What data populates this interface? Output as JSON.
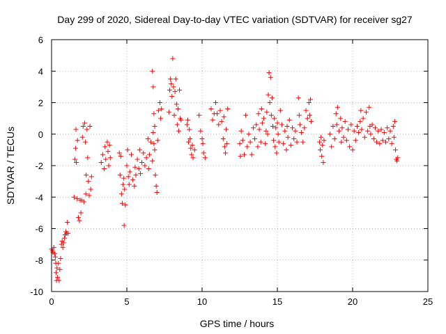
{
  "chart_data": {
    "type": "scatter",
    "title": "Day 299 of 2020, Sidereal Day-to-day VTEC variation (SDTVAR) for receiver sg27",
    "xlabel": "GPS time / hours",
    "ylabel": "SDTVAR / TECUs",
    "xlim": [
      0,
      25
    ],
    "ylim": [
      -10,
      6
    ],
    "xticks": [
      0,
      5,
      10,
      15,
      20,
      25
    ],
    "yticks": [
      -10,
      -8,
      -6,
      -4,
      -2,
      0,
      2,
      4,
      6
    ],
    "grid": true,
    "marker": "+",
    "marker_color": "#ff0000",
    "series": [
      {
        "name": "sg27",
        "points": [
          [
            0.0,
            -7.3
          ],
          [
            0.05,
            -7.4
          ],
          [
            0.1,
            -7.5
          ],
          [
            0.15,
            -7.2
          ],
          [
            0.2,
            -7.6
          ],
          [
            0.25,
            -7.8
          ],
          [
            0.28,
            -8.2
          ],
          [
            0.3,
            -8.8
          ],
          [
            0.33,
            -9.3
          ],
          [
            0.36,
            -8.5
          ],
          [
            0.4,
            -9.1
          ],
          [
            0.45,
            -8.2
          ],
          [
            0.5,
            -9.3
          ],
          [
            0.55,
            -8.6
          ],
          [
            0.6,
            -7.9
          ],
          [
            0.65,
            -7.0
          ],
          [
            0.7,
            -6.8
          ],
          [
            0.75,
            -7.2
          ],
          [
            0.8,
            -6.9
          ],
          [
            0.85,
            -6.6
          ],
          [
            0.9,
            -6.4
          ],
          [
            0.95,
            -6.2
          ],
          [
            1.0,
            -6.3
          ],
          [
            1.05,
            -5.6
          ],
          [
            1.1,
            -6.3
          ],
          [
            1.5,
            -4.0
          ],
          [
            1.55,
            -1.6
          ],
          [
            1.6,
            -0.9
          ],
          [
            1.62,
            0.3
          ],
          [
            1.65,
            -1.8
          ],
          [
            1.7,
            -4.1
          ],
          [
            1.72,
            -0.4
          ],
          [
            1.78,
            -5.3
          ],
          [
            1.85,
            -5.5
          ],
          [
            1.9,
            -4.2
          ],
          [
            1.95,
            -5.0
          ],
          [
            2.0,
            -4.2
          ],
          [
            2.05,
            -0.2
          ],
          [
            2.1,
            0.5
          ],
          [
            2.15,
            -4.3
          ],
          [
            2.2,
            0.7
          ],
          [
            2.25,
            -0.5
          ],
          [
            2.28,
            -3.8
          ],
          [
            2.3,
            -2.6
          ],
          [
            2.35,
            0.3
          ],
          [
            2.4,
            -1.5
          ],
          [
            2.45,
            -3.0
          ],
          [
            2.5,
            -3.9
          ],
          [
            2.55,
            0.5
          ],
          [
            2.6,
            -3.5
          ],
          [
            2.65,
            -2.7
          ],
          [
            3.3,
            -1.8
          ],
          [
            3.4,
            -1.3
          ],
          [
            3.5,
            -2.2
          ],
          [
            3.55,
            -0.8
          ],
          [
            3.6,
            -1.6
          ],
          [
            3.7,
            -0.5
          ],
          [
            3.75,
            -1.1
          ],
          [
            3.8,
            -2.0
          ],
          [
            3.85,
            -0.7
          ],
          [
            3.9,
            -1.5
          ],
          [
            4.5,
            -1.2
          ],
          [
            4.55,
            -2.6
          ],
          [
            4.6,
            -1.4
          ],
          [
            4.65,
            -3.8
          ],
          [
            4.7,
            -4.4
          ],
          [
            4.75,
            -3.2
          ],
          [
            4.8,
            -2.8
          ],
          [
            4.82,
            -5.8
          ],
          [
            4.85,
            -3.5
          ],
          [
            4.9,
            -4.5
          ],
          [
            5.0,
            -2.0
          ],
          [
            5.05,
            -1.0
          ],
          [
            5.1,
            -2.7
          ],
          [
            5.15,
            -3.2
          ],
          [
            5.2,
            -2.4
          ],
          [
            5.3,
            -1.3
          ],
          [
            5.4,
            -2.9
          ],
          [
            5.5,
            -3.3
          ],
          [
            5.55,
            -2.1
          ],
          [
            5.6,
            -2.6
          ],
          [
            5.7,
            -1.6
          ],
          [
            5.8,
            -2.2
          ],
          [
            5.85,
            -1.0
          ],
          [
            5.9,
            -2.5
          ],
          [
            6.0,
            -1.8
          ],
          [
            6.1,
            -1.2
          ],
          [
            6.2,
            -2.0
          ],
          [
            6.3,
            -1.5
          ],
          [
            6.4,
            -0.3
          ],
          [
            6.45,
            -2.2
          ],
          [
            6.5,
            -1.3
          ],
          [
            6.6,
            -0.5
          ],
          [
            6.7,
            -1.7
          ],
          [
            6.75,
            0.1
          ],
          [
            6.8,
            -0.6
          ],
          [
            6.85,
            -1.0
          ],
          [
            6.9,
            -2.6
          ],
          [
            6.95,
            -3.3
          ],
          [
            7.0,
            -3.7
          ],
          [
            7.05,
            -0.4
          ],
          [
            6.7,
            4.0
          ],
          [
            6.75,
            3.0
          ],
          [
            6.8,
            1.3
          ],
          [
            6.85,
            0.5
          ],
          [
            7.1,
            1.5
          ],
          [
            7.2,
            2.0
          ],
          [
            7.25,
            1.0
          ],
          [
            7.3,
            1.6
          ],
          [
            7.8,
            1.4
          ],
          [
            7.85,
            2.8
          ],
          [
            7.9,
            3.5
          ],
          [
            7.95,
            3.2
          ],
          [
            8.0,
            2.4
          ],
          [
            8.05,
            4.8
          ],
          [
            8.1,
            3.0
          ],
          [
            8.15,
            1.2
          ],
          [
            8.2,
            2.7
          ],
          [
            8.25,
            3.5
          ],
          [
            8.3,
            1.9
          ],
          [
            8.35,
            0.6
          ],
          [
            8.4,
            1.6
          ],
          [
            8.45,
            0.2
          ],
          [
            8.5,
            2.8
          ],
          [
            8.55,
            1.0
          ],
          [
            8.6,
            0.9
          ],
          [
            9.0,
            0.6
          ],
          [
            9.05,
            0.9
          ],
          [
            9.1,
            -0.5
          ],
          [
            9.15,
            0.3
          ],
          [
            9.2,
            -0.3
          ],
          [
            9.25,
            -0.9
          ],
          [
            9.3,
            -1.3
          ],
          [
            9.35,
            -0.7
          ],
          [
            9.4,
            -1.5
          ],
          [
            9.5,
            -1.0
          ],
          [
            9.8,
            1.2
          ],
          [
            9.9,
            0.2
          ],
          [
            10.0,
            -0.3
          ],
          [
            10.05,
            -0.6
          ],
          [
            10.1,
            -1.2
          ],
          [
            10.2,
            -1.5
          ],
          [
            10.6,
            1.6
          ],
          [
            10.7,
            0.9
          ],
          [
            10.8,
            1.3
          ],
          [
            10.9,
            2.0
          ],
          [
            11.0,
            1.3
          ],
          [
            11.1,
            0.6
          ],
          [
            11.2,
            1.5
          ],
          [
            11.3,
            0.8
          ],
          [
            11.4,
            -0.3
          ],
          [
            11.45,
            1.1
          ],
          [
            11.5,
            -0.8
          ],
          [
            11.55,
            -1.2
          ],
          [
            11.6,
            0.3
          ],
          [
            11.65,
            -0.6
          ],
          [
            11.7,
            1.6
          ],
          [
            12.5,
            -0.6
          ],
          [
            12.55,
            -1.4
          ],
          [
            12.6,
            0.2
          ],
          [
            12.7,
            -0.4
          ],
          [
            12.8,
            -1.3
          ],
          [
            12.9,
            1.2
          ],
          [
            13.0,
            -0.8
          ],
          [
            13.1,
            0.0
          ],
          [
            13.2,
            -0.5
          ],
          [
            13.3,
            -1.3
          ],
          [
            13.4,
            0.4
          ],
          [
            13.5,
            -0.3
          ],
          [
            13.6,
            0.6
          ],
          [
            13.7,
            -0.8
          ],
          [
            13.75,
            1.3
          ],
          [
            13.8,
            0.3
          ],
          [
            13.9,
            -0.5
          ],
          [
            13.95,
            1.6
          ],
          [
            14.0,
            0.7
          ],
          [
            14.1,
            1.0
          ],
          [
            14.2,
            -0.6
          ],
          [
            14.25,
            0.2
          ],
          [
            14.3,
            1.4
          ],
          [
            14.35,
            0.0
          ],
          [
            14.4,
            2.5
          ],
          [
            14.45,
            3.9
          ],
          [
            14.5,
            2.0
          ],
          [
            14.55,
            3.6
          ],
          [
            14.6,
            1.2
          ],
          [
            14.65,
            2.3
          ],
          [
            14.7,
            0.5
          ],
          [
            14.75,
            -0.4
          ],
          [
            14.8,
            1.0
          ],
          [
            14.85,
            -0.8
          ],
          [
            14.9,
            0.4
          ],
          [
            14.95,
            -1.2
          ],
          [
            15.0,
            0.7
          ],
          [
            15.05,
            0.0
          ],
          [
            15.1,
            -0.5
          ],
          [
            15.2,
            1.5
          ],
          [
            15.3,
            0.6
          ],
          [
            15.4,
            -0.6
          ],
          [
            15.5,
            0.2
          ],
          [
            15.6,
            -1.0
          ],
          [
            15.65,
            0.5
          ],
          [
            15.7,
            -0.2
          ],
          [
            15.8,
            0.9
          ],
          [
            15.9,
            -0.7
          ],
          [
            16.0,
            0.4
          ],
          [
            16.1,
            -0.3
          ],
          [
            16.2,
            0.2
          ],
          [
            16.3,
            -0.5
          ],
          [
            16.4,
            2.3
          ],
          [
            16.45,
            1.2
          ],
          [
            16.5,
            0.6
          ],
          [
            16.6,
            0.1
          ],
          [
            16.7,
            -0.5
          ],
          [
            16.8,
            0.4
          ],
          [
            16.9,
            1.5
          ],
          [
            17.0,
            1.0
          ],
          [
            17.1,
            2.0
          ],
          [
            17.15,
            1.2
          ],
          [
            17.2,
            2.2
          ],
          [
            17.25,
            0.8
          ],
          [
            17.8,
            -0.5
          ],
          [
            17.85,
            -1.0
          ],
          [
            17.9,
            -0.2
          ],
          [
            17.95,
            -1.4
          ],
          [
            18.0,
            -0.7
          ],
          [
            18.05,
            -1.8
          ],
          [
            18.1,
            -0.4
          ],
          [
            18.5,
            0.0
          ],
          [
            18.6,
            -0.8
          ],
          [
            18.7,
            0.5
          ],
          [
            18.8,
            -0.3
          ],
          [
            18.9,
            1.3
          ],
          [
            18.95,
            0.6
          ],
          [
            19.0,
            1.7
          ],
          [
            19.1,
            0.2
          ],
          [
            19.2,
            1.0
          ],
          [
            19.25,
            -0.5
          ],
          [
            19.3,
            0.4
          ],
          [
            19.4,
            -0.2
          ],
          [
            19.5,
            0.8
          ],
          [
            19.6,
            -0.4
          ],
          [
            19.7,
            0.3
          ],
          [
            19.8,
            -0.8
          ],
          [
            19.9,
            0.6
          ],
          [
            20.0,
            -1.0
          ],
          [
            20.1,
            0.2
          ],
          [
            20.2,
            -0.4
          ],
          [
            20.3,
            0.5
          ],
          [
            20.4,
            0.1
          ],
          [
            20.5,
            0.8
          ],
          [
            20.55,
            1.5
          ],
          [
            20.6,
            0.3
          ],
          [
            20.7,
            1.0
          ],
          [
            20.8,
            -0.2
          ],
          [
            20.9,
            1.4
          ],
          [
            21.0,
            0.2
          ],
          [
            21.1,
            1.7
          ],
          [
            21.15,
            0.5
          ],
          [
            21.2,
            0.0
          ],
          [
            21.3,
            0.6
          ],
          [
            21.4,
            -0.3
          ],
          [
            21.5,
            0.4
          ],
          [
            21.6,
            -0.5
          ],
          [
            21.7,
            0.2
          ],
          [
            21.8,
            -0.6
          ],
          [
            21.9,
            0.3
          ],
          [
            22.0,
            -0.4
          ],
          [
            22.1,
            0.1
          ],
          [
            22.2,
            -0.5
          ],
          [
            22.3,
            0.4
          ],
          [
            22.4,
            -0.3
          ],
          [
            22.5,
            0.2
          ],
          [
            22.6,
            -0.6
          ],
          [
            22.7,
            0.5
          ],
          [
            22.75,
            -0.2
          ],
          [
            22.8,
            0.8
          ],
          [
            22.85,
            -1.0
          ],
          [
            22.9,
            -1.6
          ],
          [
            22.95,
            -1.7
          ],
          [
            23.0,
            -1.5
          ]
        ]
      }
    ]
  }
}
